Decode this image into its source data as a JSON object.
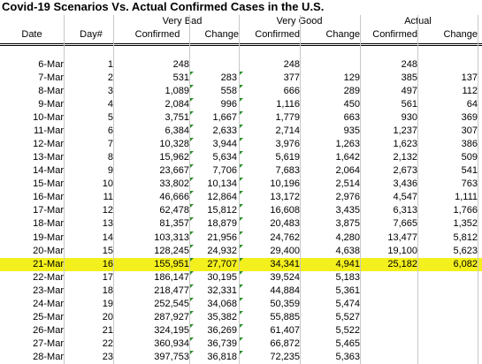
{
  "title": "Covid-19 Scenarios Vs. Actual Confirmed Cases in the U.S.",
  "groups": {
    "very_bad": "Very Bad",
    "very_good": "Very Good",
    "actual": "Actual"
  },
  "columns": {
    "date": "Date",
    "day": "Day#",
    "confirmed": "Confirmed",
    "change": "Change"
  },
  "highlight_row_index": 15,
  "highlight_color": "#f4f01d",
  "rows": [
    {
      "date": "6-Mar",
      "day": "1",
      "vb_conf": "248",
      "vb_chg": "",
      "vg_conf": "248",
      "vg_chg": "",
      "ac_conf": "248",
      "ac_chg": ""
    },
    {
      "date": "7-Mar",
      "day": "2",
      "vb_conf": "531",
      "vb_chg": "283",
      "vg_conf": "377",
      "vg_chg": "129",
      "ac_conf": "385",
      "ac_chg": "137"
    },
    {
      "date": "8-Mar",
      "day": "3",
      "vb_conf": "1,089",
      "vb_chg": "558",
      "vg_conf": "666",
      "vg_chg": "289",
      "ac_conf": "497",
      "ac_chg": "112"
    },
    {
      "date": "9-Mar",
      "day": "4",
      "vb_conf": "2,084",
      "vb_chg": "996",
      "vg_conf": "1,116",
      "vg_chg": "450",
      "ac_conf": "561",
      "ac_chg": "64"
    },
    {
      "date": "10-Mar",
      "day": "5",
      "vb_conf": "3,751",
      "vb_chg": "1,667",
      "vg_conf": "1,779",
      "vg_chg": "663",
      "ac_conf": "930",
      "ac_chg": "369"
    },
    {
      "date": "11-Mar",
      "day": "6",
      "vb_conf": "6,384",
      "vb_chg": "2,633",
      "vg_conf": "2,714",
      "vg_chg": "935",
      "ac_conf": "1,237",
      "ac_chg": "307"
    },
    {
      "date": "12-Mar",
      "day": "7",
      "vb_conf": "10,328",
      "vb_chg": "3,944",
      "vg_conf": "3,976",
      "vg_chg": "1,263",
      "ac_conf": "1,623",
      "ac_chg": "386"
    },
    {
      "date": "13-Mar",
      "day": "8",
      "vb_conf": "15,962",
      "vb_chg": "5,634",
      "vg_conf": "5,619",
      "vg_chg": "1,642",
      "ac_conf": "2,132",
      "ac_chg": "509"
    },
    {
      "date": "14-Mar",
      "day": "9",
      "vb_conf": "23,667",
      "vb_chg": "7,706",
      "vg_conf": "7,683",
      "vg_chg": "2,064",
      "ac_conf": "2,673",
      "ac_chg": "541"
    },
    {
      "date": "15-Mar",
      "day": "10",
      "vb_conf": "33,802",
      "vb_chg": "10,134",
      "vg_conf": "10,196",
      "vg_chg": "2,514",
      "ac_conf": "3,436",
      "ac_chg": "763"
    },
    {
      "date": "16-Mar",
      "day": "11",
      "vb_conf": "46,666",
      "vb_chg": "12,864",
      "vg_conf": "13,172",
      "vg_chg": "2,976",
      "ac_conf": "4,547",
      "ac_chg": "1,111"
    },
    {
      "date": "17-Mar",
      "day": "12",
      "vb_conf": "62,478",
      "vb_chg": "15,812",
      "vg_conf": "16,608",
      "vg_chg": "3,435",
      "ac_conf": "6,313",
      "ac_chg": "1,766"
    },
    {
      "date": "18-Mar",
      "day": "13",
      "vb_conf": "81,357",
      "vb_chg": "18,879",
      "vg_conf": "20,483",
      "vg_chg": "3,875",
      "ac_conf": "7,665",
      "ac_chg": "1,352"
    },
    {
      "date": "19-Mar",
      "day": "14",
      "vb_conf": "103,313",
      "vb_chg": "21,956",
      "vg_conf": "24,762",
      "vg_chg": "4,280",
      "ac_conf": "13,477",
      "ac_chg": "5,812"
    },
    {
      "date": "20-Mar",
      "day": "15",
      "vb_conf": "128,245",
      "vb_chg": "24,932",
      "vg_conf": "29,400",
      "vg_chg": "4,638",
      "ac_conf": "19,100",
      "ac_chg": "5,623"
    },
    {
      "date": "21-Mar",
      "day": "16",
      "vb_conf": "155,951",
      "vb_chg": "27,707",
      "vg_conf": "34,341",
      "vg_chg": "4,941",
      "ac_conf": "25,182",
      "ac_chg": "6,082"
    },
    {
      "date": "22-Mar",
      "day": "17",
      "vb_conf": "186,147",
      "vb_chg": "30,195",
      "vg_conf": "39,524",
      "vg_chg": "5,183",
      "ac_conf": "",
      "ac_chg": ""
    },
    {
      "date": "23-Mar",
      "day": "18",
      "vb_conf": "218,477",
      "vb_chg": "32,331",
      "vg_conf": "44,884",
      "vg_chg": "5,361",
      "ac_conf": "",
      "ac_chg": ""
    },
    {
      "date": "24-Mar",
      "day": "19",
      "vb_conf": "252,545",
      "vb_chg": "34,068",
      "vg_conf": "50,359",
      "vg_chg": "5,474",
      "ac_conf": "",
      "ac_chg": ""
    },
    {
      "date": "25-Mar",
      "day": "20",
      "vb_conf": "287,927",
      "vb_chg": "35,382",
      "vg_conf": "55,885",
      "vg_chg": "5,527",
      "ac_conf": "",
      "ac_chg": ""
    },
    {
      "date": "26-Mar",
      "day": "21",
      "vb_conf": "324,195",
      "vb_chg": "36,269",
      "vg_conf": "61,407",
      "vg_chg": "5,522",
      "ac_conf": "",
      "ac_chg": ""
    },
    {
      "date": "27-Mar",
      "day": "22",
      "vb_conf": "360,934",
      "vb_chg": "36,739",
      "vg_conf": "66,872",
      "vg_chg": "5,465",
      "ac_conf": "",
      "ac_chg": ""
    },
    {
      "date": "28-Mar",
      "day": "23",
      "vb_conf": "397,753",
      "vb_chg": "36,818",
      "vg_conf": "72,235",
      "vg_chg": "5,363",
      "ac_conf": "",
      "ac_chg": ""
    }
  ]
}
